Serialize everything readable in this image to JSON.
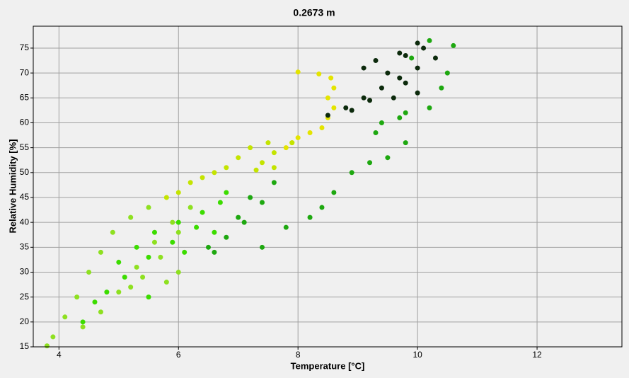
{
  "chart_data": {
    "type": "scatter",
    "title": "0.2673 m",
    "x_label": "Temperature [°C]",
    "y_label": "Relative Humidity [%]",
    "xlim": [
      3.57,
      13.42
    ],
    "ylim": [
      15,
      79.4
    ],
    "xticks": [
      4,
      6,
      8,
      10,
      12
    ],
    "yticks": [
      15,
      20,
      25,
      30,
      35,
      40,
      45,
      50,
      55,
      60,
      65,
      70,
      75
    ],
    "grid": true,
    "series": [
      {
        "color": "#e4e400",
        "x": [
          8.0,
          8.35,
          8.55,
          8.6,
          8.5,
          8.6,
          8.5,
          8.4,
          8.2,
          8.0,
          7.9,
          7.8
        ],
        "y": [
          70.2,
          69.8,
          69,
          67,
          65,
          63,
          61,
          59,
          58,
          57,
          56,
          55
        ]
      },
      {
        "color": "#c4e400",
        "x": [
          7.9,
          7.6,
          7.4,
          7.2,
          7.5,
          7.0,
          6.8,
          6.6,
          6.4,
          6.2,
          6.0,
          5.8,
          7.6,
          7.3
        ],
        "y": [
          56,
          54,
          52,
          55,
          56,
          53,
          51,
          50,
          49,
          48,
          46,
          45,
          51,
          50.5
        ]
      },
      {
        "color": "#8ee020",
        "x": [
          5.5,
          5.2,
          4.9,
          4.7,
          4.5,
          4.3,
          4.1,
          3.9,
          3.8,
          4.4,
          4.7,
          5.0,
          5.3,
          5.6,
          5.9,
          6.2,
          6.0,
          5.7,
          5.4,
          5.2,
          6.0,
          5.8
        ],
        "y": [
          43,
          41,
          38,
          34,
          30,
          25,
          21,
          17,
          15.2,
          19,
          22,
          26,
          31,
          36,
          40,
          43,
          38,
          33,
          29,
          27,
          30,
          28
        ]
      },
      {
        "color": "#3cdc00",
        "x": [
          5.0,
          5.3,
          5.6,
          6.0,
          6.4,
          6.7,
          6.8,
          6.3,
          5.9,
          5.5,
          5.1,
          4.8,
          4.6,
          4.4,
          5.5,
          6.1,
          6.6
        ],
        "y": [
          32,
          35,
          38,
          40,
          42,
          44,
          46,
          39,
          36,
          33,
          29,
          26,
          24,
          20,
          25,
          34,
          38
        ]
      },
      {
        "color": "#1ea810",
        "x": [
          6.5,
          6.8,
          7.1,
          7.4,
          7.6,
          7.2,
          7.0,
          6.6,
          7.4,
          7.8,
          8.2,
          8.4,
          8.6,
          8.9,
          9.2,
          9.5,
          9.8,
          9.4,
          9.8,
          10.2,
          10.4,
          10.5,
          10.6,
          10.2,
          9.9,
          9.7,
          9.3
        ],
        "y": [
          35,
          37,
          40,
          44,
          48,
          45,
          41,
          34,
          35,
          39,
          41,
          43,
          46,
          50,
          52,
          53,
          56,
          60,
          62,
          63,
          67,
          70,
          75.5,
          76.5,
          73,
          61,
          58
        ]
      },
      {
        "color": "#0c2a0c",
        "x": [
          8.5,
          8.8,
          9.1,
          9.4,
          9.7,
          10.0,
          10.3,
          10.1,
          9.7,
          9.3,
          9.1,
          9.5,
          9.8,
          10.0,
          9.6,
          9.2,
          8.9,
          9.8,
          10.0
        ],
        "y": [
          61.5,
          63,
          65,
          67,
          69,
          71,
          73,
          75,
          74,
          72.5,
          71,
          70,
          68,
          66,
          65,
          64.5,
          62.5,
          73.5,
          76
        ]
      }
    ]
  }
}
